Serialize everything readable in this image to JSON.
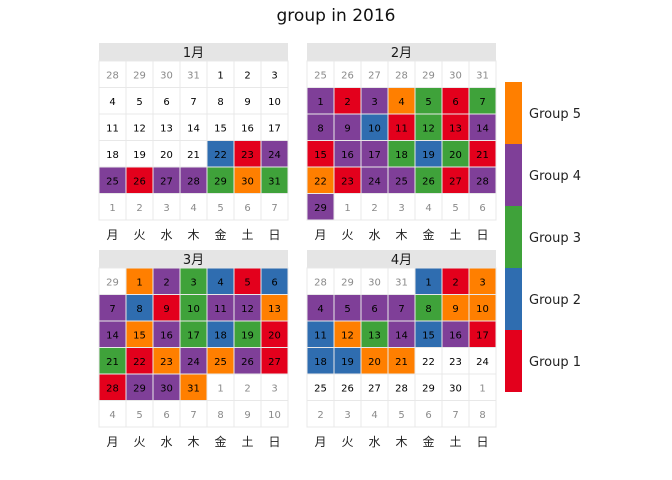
{
  "chart_data": {
    "type": "heatmap",
    "title": "group in 2016",
    "weekday_labels": [
      "月",
      "火",
      "水",
      "木",
      "金",
      "土",
      "日"
    ],
    "colors": {
      "Group 1": "#e3001c",
      "Group 2": "#2f6db0",
      "Group 3": "#3fa23a",
      "Group 4": "#7f3f98",
      "Group 5": "#ff7f00",
      "outside": "#ffffff"
    },
    "legend": {
      "position": "right",
      "entries": [
        "Group 5",
        "Group 4",
        "Group 3",
        "Group 2",
        "Group 1"
      ]
    },
    "months": [
      {
        "label": "1月",
        "days": [
          "28",
          "29",
          "30",
          "31",
          "1",
          "2",
          "3",
          "4",
          "5",
          "6",
          "7",
          "8",
          "9",
          "10",
          "11",
          "12",
          "13",
          "14",
          "15",
          "16",
          "17",
          "18",
          "19",
          "20",
          "21",
          "22",
          "23",
          "24",
          "25",
          "26",
          "27",
          "28",
          "29",
          "30",
          "31",
          "1",
          "2",
          "3",
          "4",
          "5",
          "6",
          "7"
        ],
        "in_month": [
          0,
          0,
          0,
          0,
          1,
          1,
          1,
          1,
          1,
          1,
          1,
          1,
          1,
          1,
          1,
          1,
          1,
          1,
          1,
          1,
          1,
          1,
          1,
          1,
          1,
          1,
          1,
          1,
          1,
          1,
          1,
          1,
          1,
          1,
          1,
          0,
          0,
          0,
          0,
          0,
          0,
          0
        ],
        "groups": [
          null,
          null,
          null,
          null,
          null,
          null,
          null,
          null,
          null,
          null,
          null,
          null,
          null,
          null,
          null,
          null,
          null,
          null,
          null,
          null,
          null,
          null,
          null,
          null,
          null,
          "Group 2",
          "Group 1",
          "Group 4",
          "Group 4",
          "Group 1",
          "Group 4",
          "Group 4",
          "Group 3",
          "Group 5",
          "Group 3",
          null,
          null,
          null,
          null,
          null,
          null,
          null
        ]
      },
      {
        "label": "2月",
        "days": [
          "25",
          "26",
          "27",
          "28",
          "29",
          "30",
          "31",
          "1",
          "2",
          "3",
          "4",
          "5",
          "6",
          "7",
          "8",
          "9",
          "10",
          "11",
          "12",
          "13",
          "14",
          "15",
          "16",
          "17",
          "18",
          "19",
          "20",
          "21",
          "22",
          "23",
          "24",
          "25",
          "26",
          "27",
          "28",
          "29",
          "1",
          "2",
          "3",
          "4",
          "5",
          "6"
        ],
        "in_month": [
          0,
          0,
          0,
          0,
          0,
          0,
          0,
          1,
          1,
          1,
          1,
          1,
          1,
          1,
          1,
          1,
          1,
          1,
          1,
          1,
          1,
          1,
          1,
          1,
          1,
          1,
          1,
          1,
          1,
          1,
          1,
          1,
          1,
          1,
          1,
          1,
          0,
          0,
          0,
          0,
          0,
          0
        ],
        "groups": [
          null,
          null,
          null,
          null,
          null,
          null,
          null,
          "Group 4",
          "Group 1",
          "Group 4",
          "Group 5",
          "Group 3",
          "Group 1",
          "Group 3",
          "Group 4",
          "Group 4",
          "Group 2",
          "Group 1",
          "Group 3",
          "Group 1",
          "Group 4",
          "Group 1",
          "Group 4",
          "Group 4",
          "Group 3",
          "Group 2",
          "Group 3",
          "Group 1",
          "Group 5",
          "Group 1",
          "Group 4",
          "Group 4",
          "Group 3",
          "Group 1",
          "Group 4",
          "Group 4",
          null,
          null,
          null,
          null,
          null,
          null
        ]
      },
      {
        "label": "3月",
        "days": [
          "29",
          "1",
          "2",
          "3",
          "4",
          "5",
          "6",
          "7",
          "8",
          "9",
          "10",
          "11",
          "12",
          "13",
          "14",
          "15",
          "16",
          "17",
          "18",
          "19",
          "20",
          "21",
          "22",
          "23",
          "24",
          "25",
          "26",
          "27",
          "28",
          "29",
          "30",
          "31",
          "1",
          "2",
          "3",
          "4",
          "5",
          "6",
          "7",
          "8",
          "9",
          "10"
        ],
        "in_month": [
          0,
          1,
          1,
          1,
          1,
          1,
          1,
          1,
          1,
          1,
          1,
          1,
          1,
          1,
          1,
          1,
          1,
          1,
          1,
          1,
          1,
          1,
          1,
          1,
          1,
          1,
          1,
          1,
          1,
          1,
          1,
          1,
          0,
          0,
          0,
          0,
          0,
          0,
          0,
          0,
          0,
          0
        ],
        "groups": [
          null,
          "Group 5",
          "Group 4",
          "Group 3",
          "Group 2",
          "Group 1",
          "Group 2",
          "Group 4",
          "Group 2",
          "Group 1",
          "Group 3",
          "Group 4",
          "Group 4",
          "Group 5",
          "Group 4",
          "Group 5",
          "Group 4",
          "Group 3",
          "Group 2",
          "Group 3",
          "Group 1",
          "Group 3",
          "Group 1",
          "Group 5",
          "Group 4",
          "Group 5",
          "Group 4",
          "Group 1",
          "Group 1",
          "Group 4",
          "Group 4",
          "Group 5",
          null,
          null,
          null,
          null,
          null,
          null,
          null,
          null,
          null,
          null
        ]
      },
      {
        "label": "4月",
        "days": [
          "28",
          "29",
          "30",
          "31",
          "1",
          "2",
          "3",
          "4",
          "5",
          "6",
          "7",
          "8",
          "9",
          "10",
          "11",
          "12",
          "13",
          "14",
          "15",
          "16",
          "17",
          "18",
          "19",
          "20",
          "21",
          "22",
          "23",
          "24",
          "25",
          "26",
          "27",
          "28",
          "29",
          "30",
          "1",
          "2",
          "3",
          "4",
          "5",
          "6",
          "7",
          "8"
        ],
        "in_month": [
          0,
          0,
          0,
          0,
          1,
          1,
          1,
          1,
          1,
          1,
          1,
          1,
          1,
          1,
          1,
          1,
          1,
          1,
          1,
          1,
          1,
          1,
          1,
          1,
          1,
          1,
          1,
          1,
          1,
          1,
          1,
          1,
          1,
          1,
          0,
          0,
          0,
          0,
          0,
          0,
          0,
          0
        ],
        "groups": [
          null,
          null,
          null,
          null,
          "Group 2",
          "Group 1",
          "Group 5",
          "Group 4",
          "Group 4",
          "Group 4",
          "Group 4",
          "Group 3",
          "Group 5",
          "Group 5",
          "Group 2",
          "Group 5",
          "Group 3",
          "Group 4",
          "Group 2",
          "Group 4",
          "Group 1",
          "Group 2",
          "Group 2",
          "Group 5",
          "Group 5",
          null,
          null,
          null,
          null,
          null,
          null,
          null,
          null,
          null,
          null,
          null,
          null,
          null,
          null,
          null,
          null,
          null
        ]
      }
    ]
  }
}
